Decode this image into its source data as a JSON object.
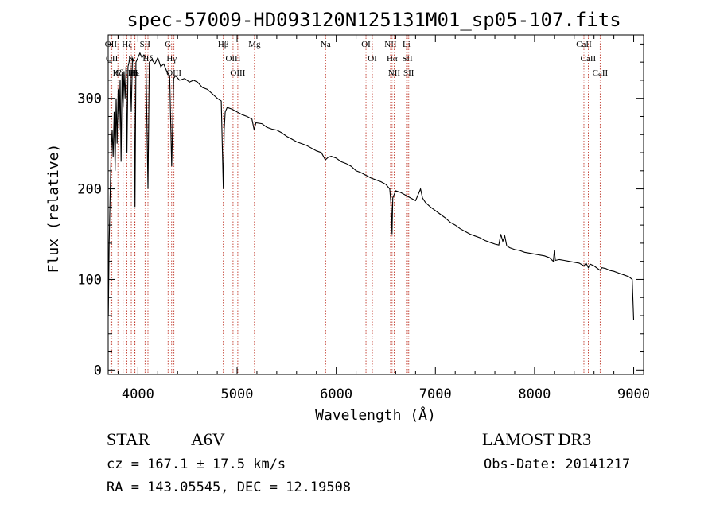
{
  "chart_data": {
    "type": "line",
    "title": "spec-57009-HD093120N125131M01_sp05-107.fits",
    "xlabel": "Wavelength (Å)",
    "ylabel": "Flux (relative)",
    "xlim": [
      3700,
      9100
    ],
    "ylim": [
      -5,
      370
    ],
    "x_ticks": [
      4000,
      5000,
      6000,
      7000,
      8000,
      9000
    ],
    "x_tick_labels": [
      "4000",
      "5000",
      "6000",
      "7000",
      "8000",
      "9000"
    ],
    "y_ticks": [
      0,
      100,
      200,
      300
    ],
    "y_tick_labels": [
      "0",
      "100",
      "200",
      "300"
    ],
    "series": [
      {
        "name": "spectrum",
        "points": [
          [
            3702,
            60
          ],
          [
            3710,
            140
          ],
          [
            3720,
            195
          ],
          [
            3730,
            240
          ],
          [
            3740,
            265
          ],
          [
            3750,
            235
          ],
          [
            3760,
            285
          ],
          [
            3770,
            220
          ],
          [
            3780,
            300
          ],
          [
            3790,
            250
          ],
          [
            3800,
            310
          ],
          [
            3810,
            265
          ],
          [
            3820,
            320
          ],
          [
            3830,
            230
          ],
          [
            3840,
            325
          ],
          [
            3850,
            290
          ],
          [
            3860,
            330
          ],
          [
            3870,
            300
          ],
          [
            3880,
            335
          ],
          [
            3889,
            240
          ],
          [
            3900,
            335
          ],
          [
            3910,
            340
          ],
          [
            3920,
            345
          ],
          [
            3933,
            285
          ],
          [
            3945,
            345
          ],
          [
            3960,
            340
          ],
          [
            3970,
            180
          ],
          [
            3980,
            340
          ],
          [
            4000,
            345
          ],
          [
            4020,
            350
          ],
          [
            4040,
            345
          ],
          [
            4060,
            348
          ],
          [
            4080,
            345
          ],
          [
            4101,
            200
          ],
          [
            4115,
            340
          ],
          [
            4140,
            343
          ],
          [
            4170,
            338
          ],
          [
            4200,
            345
          ],
          [
            4230,
            335
          ],
          [
            4260,
            338
          ],
          [
            4290,
            330
          ],
          [
            4320,
            325
          ],
          [
            4340,
            225
          ],
          [
            4350,
            270
          ],
          [
            4360,
            322
          ],
          [
            4380,
            325
          ],
          [
            4420,
            320
          ],
          [
            4470,
            322
          ],
          [
            4520,
            318
          ],
          [
            4560,
            320
          ],
          [
            4600,
            318
          ],
          [
            4650,
            312
          ],
          [
            4700,
            310
          ],
          [
            4750,
            305
          ],
          [
            4800,
            300
          ],
          [
            4840,
            297
          ],
          [
            4861,
            200
          ],
          [
            4870,
            265
          ],
          [
            4880,
            285
          ],
          [
            4900,
            290
          ],
          [
            4950,
            288
          ],
          [
            5000,
            285
          ],
          [
            5050,
            282
          ],
          [
            5100,
            280
          ],
          [
            5150,
            277
          ],
          [
            5172,
            265
          ],
          [
            5190,
            273
          ],
          [
            5250,
            272
          ],
          [
            5300,
            268
          ],
          [
            5350,
            266
          ],
          [
            5400,
            265
          ],
          [
            5450,
            262
          ],
          [
            5500,
            258
          ],
          [
            5550,
            255
          ],
          [
            5600,
            252
          ],
          [
            5650,
            250
          ],
          [
            5700,
            248
          ],
          [
            5750,
            245
          ],
          [
            5800,
            242
          ],
          [
            5850,
            240
          ],
          [
            5890,
            232
          ],
          [
            5920,
            235
          ],
          [
            5950,
            236
          ],
          [
            6000,
            234
          ],
          [
            6050,
            230
          ],
          [
            6100,
            228
          ],
          [
            6150,
            225
          ],
          [
            6200,
            220
          ],
          [
            6250,
            218
          ],
          [
            6300,
            215
          ],
          [
            6350,
            212
          ],
          [
            6400,
            210
          ],
          [
            6450,
            208
          ],
          [
            6500,
            205
          ],
          [
            6540,
            200
          ],
          [
            6555,
            180
          ],
          [
            6563,
            150
          ],
          [
            6570,
            190
          ],
          [
            6600,
            198
          ],
          [
            6650,
            196
          ],
          [
            6700,
            193
          ],
          [
            6750,
            190
          ],
          [
            6800,
            187
          ],
          [
            6850,
            200
          ],
          [
            6870,
            190
          ],
          [
            6900,
            185
          ],
          [
            6950,
            180
          ],
          [
            7000,
            176
          ],
          [
            7050,
            172
          ],
          [
            7100,
            168
          ],
          [
            7150,
            163
          ],
          [
            7200,
            160
          ],
          [
            7250,
            156
          ],
          [
            7300,
            153
          ],
          [
            7350,
            150
          ],
          [
            7400,
            148
          ],
          [
            7450,
            146
          ],
          [
            7500,
            143
          ],
          [
            7550,
            141
          ],
          [
            7600,
            139
          ],
          [
            7640,
            138
          ],
          [
            7660,
            150
          ],
          [
            7680,
            142
          ],
          [
            7700,
            148
          ],
          [
            7720,
            137
          ],
          [
            7750,
            135
          ],
          [
            7800,
            133
          ],
          [
            7850,
            132
          ],
          [
            7900,
            130
          ],
          [
            7950,
            129
          ],
          [
            8000,
            128
          ],
          [
            8050,
            127
          ],
          [
            8100,
            126
          ],
          [
            8150,
            124
          ],
          [
            8190,
            120
          ],
          [
            8200,
            132
          ],
          [
            8210,
            121
          ],
          [
            8250,
            122
          ],
          [
            8300,
            121
          ],
          [
            8350,
            120
          ],
          [
            8400,
            119
          ],
          [
            8450,
            118
          ],
          [
            8498,
            115
          ],
          [
            8520,
            118
          ],
          [
            8542,
            113
          ],
          [
            8560,
            117
          ],
          [
            8600,
            115
          ],
          [
            8662,
            110
          ],
          [
            8680,
            113
          ],
          [
            8720,
            112
          ],
          [
            8760,
            110
          ],
          [
            8800,
            109
          ],
          [
            8850,
            107
          ],
          [
            8900,
            105
          ],
          [
            8950,
            103
          ],
          [
            8985,
            100
          ],
          [
            8995,
            70
          ],
          [
            9000,
            55
          ]
        ]
      }
    ],
    "line_markers": [
      {
        "label": "Hδ",
        "x": 3798
      },
      {
        "label": "Hζ",
        "x": 3889
      },
      {
        "label": "Hε",
        "x": 3970
      },
      {
        "label": "Hδ",
        "x": 4101
      },
      {
        "label": "OII",
        "x": 3727
      },
      {
        "label": "OII",
        "x": 3737
      },
      {
        "label": "CaII",
        "x": 3850
      },
      {
        "label": "SII",
        "x": 4072
      },
      {
        "label": "K",
        "x": 3933
      },
      {
        "label": "H",
        "x": 3968
      },
      {
        "label": "OIII",
        "x": 4363
      },
      {
        "label": "Hγ",
        "x": 4340
      },
      {
        "label": "G",
        "x": 4304
      },
      {
        "label": "Hβ",
        "x": 4861
      },
      {
        "label": "OIII",
        "x": 4959
      },
      {
        "label": "OIII",
        "x": 5007
      },
      {
        "label": "Mg",
        "x": 5175
      },
      {
        "label": "Na",
        "x": 5893
      },
      {
        "label": "OI",
        "x": 6300
      },
      {
        "label": "OI",
        "x": 6364
      },
      {
        "label": "Hα",
        "x": 6563
      },
      {
        "label": "NII",
        "x": 6548
      },
      {
        "label": "NII",
        "x": 6584
      },
      {
        "label": "SII",
        "x": 6717
      },
      {
        "label": "SII",
        "x": 6731
      },
      {
        "label": "Li",
        "x": 6708
      },
      {
        "label": "CaII",
        "x": 8498
      },
      {
        "label": "CaII",
        "x": 8542
      },
      {
        "label": "CaII",
        "x": 8662
      }
    ]
  },
  "info": {
    "object_type": "STAR",
    "spectral_class": "A6V",
    "survey": "LAMOST DR3",
    "cz": "cz = 167.1 ± 17.5 km/s",
    "obs_date": "Obs-Date: 20141217",
    "ra_dec": "RA = 143.05545, DEC =  12.19508"
  },
  "colors": {
    "spectrum": "#000000",
    "marker_line": "#c0392b",
    "axes": "#000000"
  }
}
